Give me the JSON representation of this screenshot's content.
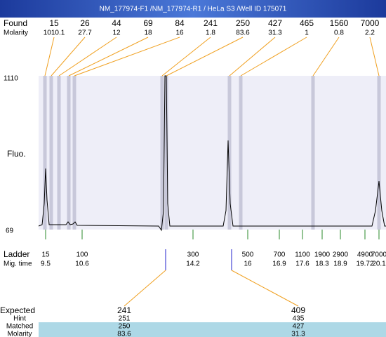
{
  "header": {
    "title": "NM_177974-F1 /NM_177974-R1 / HeLa S3 /Well ID 175071"
  },
  "found": {
    "label": "Found",
    "values": [
      15,
      26,
      44,
      69,
      84,
      241,
      250,
      427,
      465,
      1560,
      7000
    ]
  },
  "molarity": {
    "label": "Molarity",
    "values": [
      1010.1,
      27.7,
      12,
      18,
      16,
      1.8,
      83.6,
      31.3,
      1,
      0.8,
      2.2
    ]
  },
  "axis": {
    "top": "1110",
    "bottom": "69",
    "label": "Fluo."
  },
  "ladder": {
    "label": "Ladder",
    "sizes": [
      15,
      100,
      300,
      500,
      700,
      1100,
      1900,
      2900,
      4900,
      7000
    ]
  },
  "mig_time": {
    "label": "Mig. time",
    "values": [
      9.5,
      10.6,
      14.2,
      16,
      16.9,
      17.6,
      18.3,
      18.9,
      19.72,
      20.1
    ]
  },
  "results": {
    "labels": [
      "Expected",
      "Hint",
      "Matched",
      "Molarity"
    ],
    "columns": [
      [
        241,
        251,
        250,
        83.6
      ],
      [
        409,
        435,
        427,
        31.3
      ]
    ]
  }
}
